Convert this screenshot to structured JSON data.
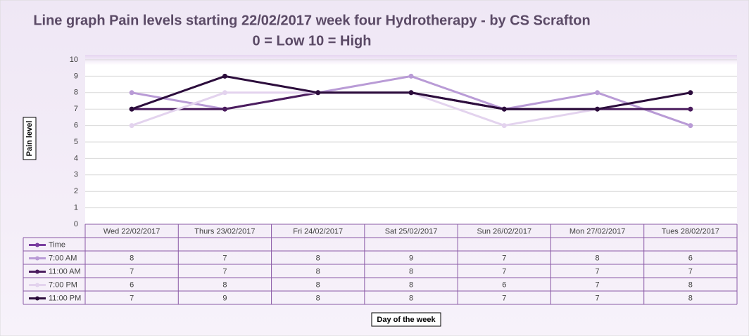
{
  "chart_data": {
    "type": "line",
    "title": "Line graph Pain levels starting 22/02/2017   week four Hydrotherapy - by CS Scrafton",
    "subtitle": "0 = Low 10 = High",
    "y_label": "Pain level",
    "x_label": "Day of the week",
    "categories": [
      "Wed 22/02/2017",
      "Thurs 23/02/2017",
      "Fri 24/02/2017",
      "Sat 25/02/2017",
      "Sun 26/02/2017",
      "Mon 27/02/2017",
      "Tues 28/02/2017"
    ],
    "series": [
      {
        "name": "Time",
        "color": "#7a3ea0",
        "values": [
          null,
          null,
          null,
          null,
          null,
          null,
          null
        ]
      },
      {
        "name": "7:00 AM",
        "color": "#b99bd6",
        "values": [
          8,
          7,
          8,
          9,
          7,
          8,
          6
        ]
      },
      {
        "name": "11:00 AM",
        "color": "#4b1d5e",
        "values": [
          7,
          7,
          8,
          8,
          7,
          7,
          7
        ]
      },
      {
        "name": "7:00 PM",
        "color": "#e3d3ee",
        "values": [
          6,
          8,
          8,
          8,
          6,
          7,
          8
        ]
      },
      {
        "name": "11:00 PM",
        "color": "#2c0d3c",
        "values": [
          7,
          9,
          8,
          8,
          7,
          7,
          8
        ]
      }
    ],
    "ylim": [
      0,
      10
    ],
    "yticks": [
      0,
      1,
      2,
      3,
      4,
      5,
      6,
      7,
      8,
      9,
      10
    ],
    "grid": true
  }
}
